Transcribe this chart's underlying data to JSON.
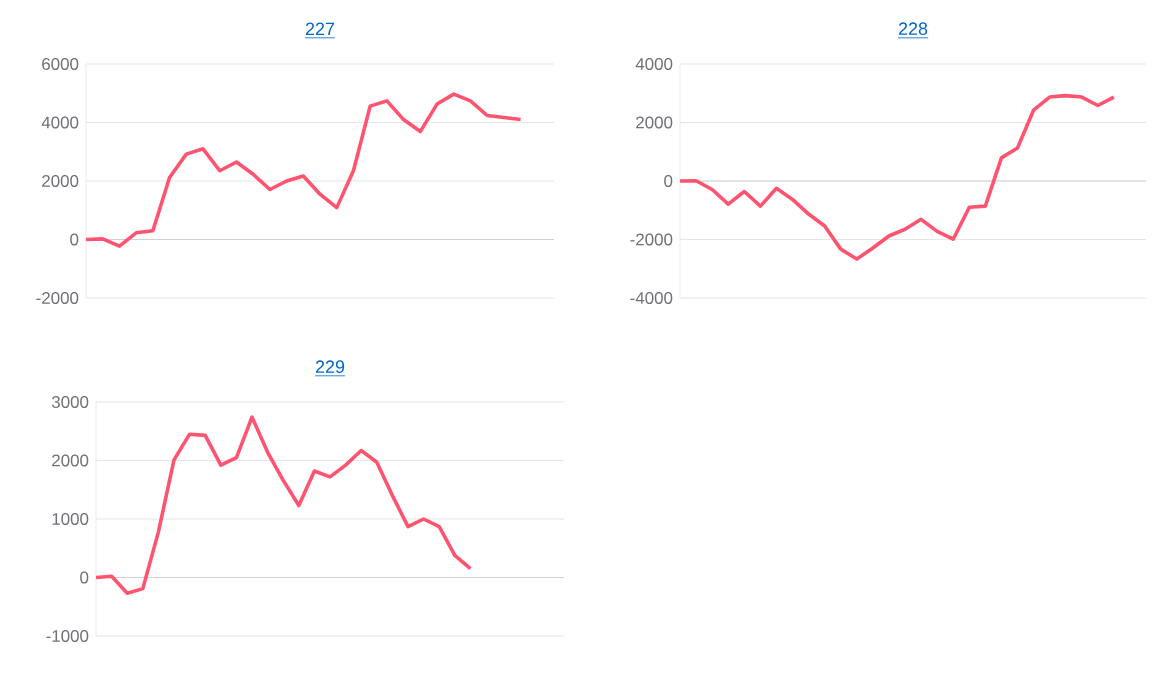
{
  "chart_data": [
    {
      "type": "line",
      "title": "227",
      "categories": [
        null,
        null,
        null,
        null,
        null,
        null,
        null,
        null,
        null,
        null,
        null,
        null,
        null,
        null,
        null,
        null,
        null,
        null,
        null,
        null,
        null,
        null,
        null,
        null,
        null,
        null,
        null,
        null,
        null
      ],
      "values": [
        0,
        20,
        -230,
        230,
        300,
        2120,
        2920,
        3100,
        2350,
        2650,
        2230,
        1710,
        2000,
        2170,
        1550,
        1090,
        2350,
        4560,
        4740,
        4100,
        3690,
        4630,
        4970,
        4740,
        4240,
        4170,
        4100,
        null,
        null
      ],
      "color": "#ff5470",
      "ylim": [
        -2000,
        6000
      ],
      "yticks": [
        -2000,
        0,
        2000,
        4000,
        6000
      ],
      "grid": "y"
    },
    {
      "type": "line",
      "title": "228",
      "categories": [
        null,
        null,
        null,
        null,
        null,
        null,
        null,
        null,
        null,
        null,
        null,
        null,
        null,
        null,
        null,
        null,
        null,
        null,
        null,
        null,
        null,
        null,
        null,
        null,
        null,
        null,
        null,
        null,
        null,
        null
      ],
      "values": [
        0,
        10,
        -290,
        -790,
        -360,
        -860,
        -250,
        -630,
        -1130,
        -1540,
        -2330,
        -2670,
        -2290,
        -1880,
        -1650,
        -1310,
        -1720,
        -1990,
        -900,
        -860,
        790,
        1130,
        2420,
        2870,
        2920,
        2870,
        2580,
        2870,
        null,
        null
      ],
      "color": "#ff5470",
      "ylim": [
        -4000,
        4000
      ],
      "yticks": [
        -4000,
        -2000,
        0,
        2000,
        4000
      ],
      "grid": "y"
    },
    {
      "type": "line",
      "title": "229",
      "categories": [
        null,
        null,
        null,
        null,
        null,
        null,
        null,
        null,
        null,
        null,
        null,
        null,
        null,
        null,
        null,
        null,
        null,
        null,
        null,
        null,
        null,
        null,
        null,
        null,
        null,
        null,
        null,
        null,
        null,
        null,
        null
      ],
      "values": [
        0,
        20,
        -270,
        -190,
        780,
        2010,
        2450,
        2430,
        1920,
        2050,
        2740,
        2140,
        1660,
        1230,
        1820,
        1720,
        1920,
        2170,
        1970,
        1400,
        870,
        1000,
        870,
        380,
        150,
        null,
        null,
        null,
        null,
        null,
        null
      ],
      "color": "#ff5470",
      "ylim": [
        -1000,
        3000
      ],
      "yticks": [
        -1000,
        0,
        1000,
        2000,
        3000
      ],
      "grid": "y"
    }
  ]
}
